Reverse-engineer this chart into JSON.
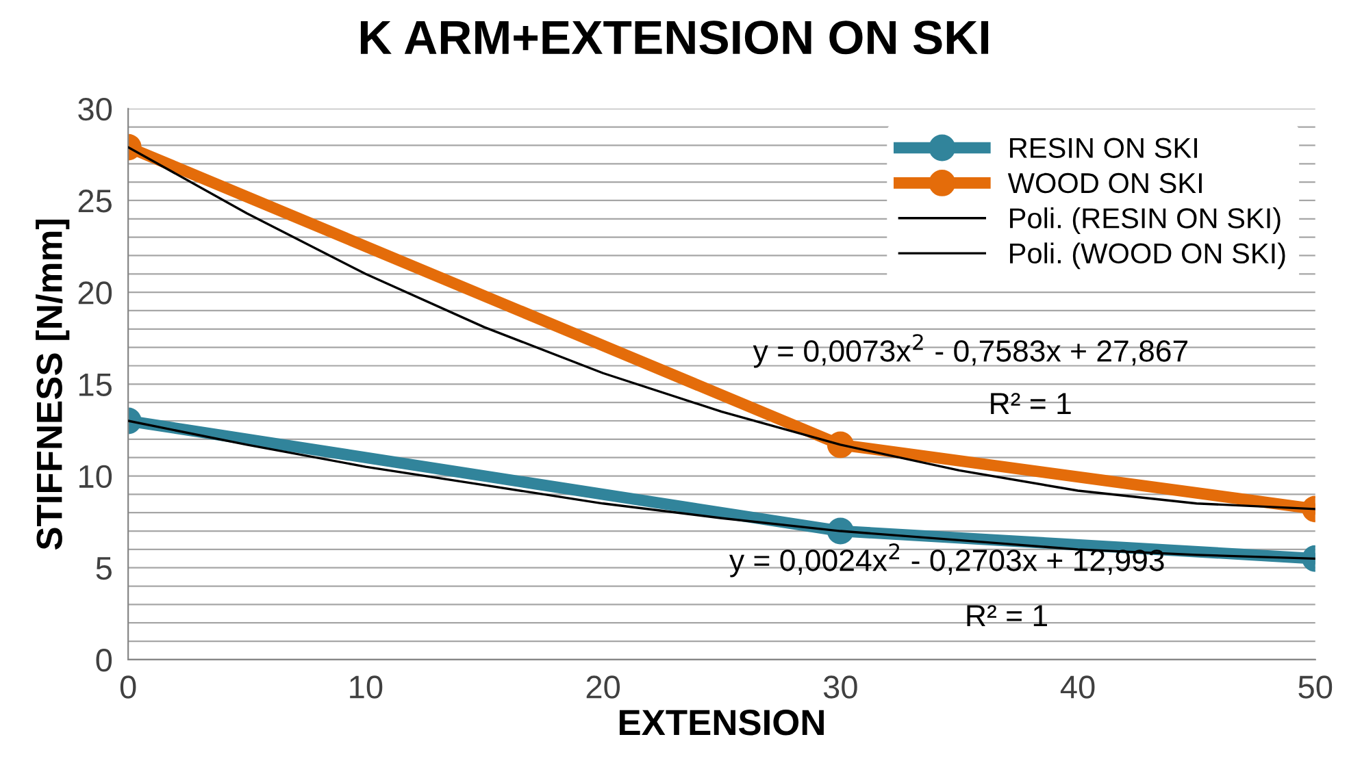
{
  "chart_data": {
    "type": "line",
    "title": "K ARM+EXTENSION ON SKI",
    "xlabel": "EXTENSION",
    "ylabel": "STIFFNESS [N/mm]",
    "series": [
      {
        "name": "RESIN ON SKI",
        "color": "#31849b",
        "x": [
          0,
          30,
          50
        ],
        "values": [
          13.0,
          7.0,
          5.5
        ],
        "marker": "circle"
      },
      {
        "name": "WOOD ON SKI",
        "color": "#e46c0a",
        "x": [
          0,
          30,
          50
        ],
        "values": [
          27.9,
          11.7,
          8.2
        ],
        "marker": "circle"
      },
      {
        "name": "Poli. (RESIN ON SKI)",
        "color": "#000000",
        "x": [
          0,
          5,
          10,
          15,
          20,
          25,
          30,
          35,
          40,
          45,
          50
        ],
        "values": [
          13.0,
          11.7,
          10.5,
          9.5,
          8.5,
          7.7,
          7.0,
          6.5,
          6.0,
          5.7,
          5.5
        ],
        "marker": "none"
      },
      {
        "name": "Poli. (WOOD ON SKI)",
        "color": "#000000",
        "x": [
          0,
          5,
          10,
          15,
          20,
          25,
          30,
          35,
          40,
          45,
          50
        ],
        "values": [
          27.9,
          24.3,
          21.0,
          18.1,
          15.6,
          13.5,
          11.7,
          10.3,
          9.2,
          8.5,
          8.2
        ],
        "marker": "none"
      }
    ],
    "xlim": [
      0,
      50
    ],
    "xticks": [
      0,
      10,
      20,
      30,
      40,
      50
    ],
    "ylim": [
      0,
      30
    ],
    "yticks": [
      0,
      {
        "value": 1,
        "label": null
      },
      {
        "value": 2,
        "label": null
      },
      {
        "value": 3,
        "label": null
      },
      {
        "value": 4,
        "label": null
      },
      5,
      {
        "value": 6,
        "label": null
      },
      {
        "value": 7,
        "label": null
      },
      {
        "value": 8,
        "label": null
      },
      {
        "value": 9,
        "label": null
      },
      10,
      {
        "value": 11,
        "label": null
      },
      {
        "value": 12,
        "label": null
      },
      {
        "value": 13,
        "label": null
      },
      {
        "value": 14,
        "label": null
      },
      15,
      {
        "value": 16,
        "label": null
      },
      {
        "value": 17,
        "label": null
      },
      {
        "value": 18,
        "label": null
      },
      {
        "value": 19,
        "label": null
      },
      20,
      {
        "value": 21,
        "label": null
      },
      {
        "value": 22,
        "label": null
      },
      {
        "value": 23,
        "label": null
      },
      {
        "value": 24,
        "label": null
      },
      25,
      {
        "value": 26,
        "label": null
      },
      {
        "value": 27,
        "label": null
      },
      {
        "value": 28,
        "label": null
      },
      {
        "value": 29,
        "label": null
      },
      30
    ],
    "grid": "y",
    "legend": "top right",
    "line_style": "solid",
    "annotations": [
      "y = 0,0073x$^{2}$ - 0,7583x + 27,867",
      "R² = 1",
      "y = 0,0024x$^{2}$ - 0,2703x + 12,993",
      "R² = 1"
    ]
  }
}
